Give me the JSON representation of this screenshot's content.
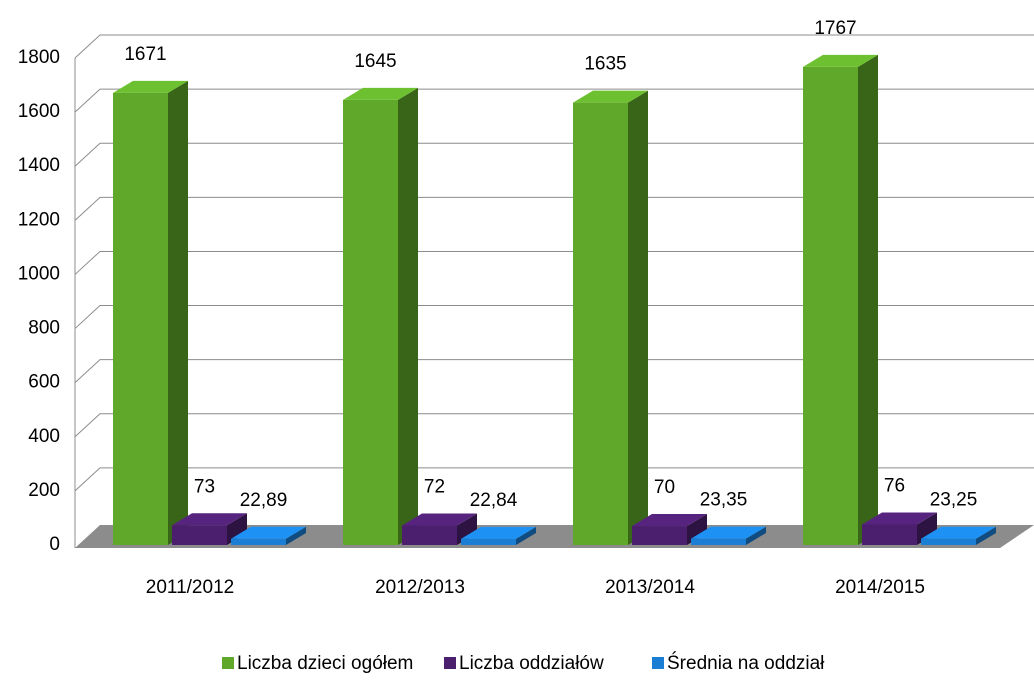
{
  "chart_data": {
    "type": "bar3d",
    "categories": [
      "2011/2012",
      "2012/2013",
      "2013/2014",
      "2014/2015"
    ],
    "series": [
      {
        "name": "Liczba dzieci ogółem",
        "color": "#5fa82a",
        "values": [
          1671,
          1645,
          1635,
          1767
        ]
      },
      {
        "name": "Liczba oddziałów",
        "color": "#4b1f6e",
        "values": [
          73,
          72,
          70,
          76
        ]
      },
      {
        "name": "Średnia na oddział",
        "color": "#1a7fd4",
        "values": [
          22.89,
          22.84,
          23.35,
          23.25
        ],
        "value_labels": [
          "22,89",
          "22,84",
          "23,35",
          "23,25"
        ]
      }
    ],
    "ylim": [
      0,
      1800
    ],
    "yticks": [
      0,
      200,
      400,
      600,
      800,
      1000,
      1200,
      1400,
      1600,
      1800
    ],
    "grid": true,
    "legend": "bottom"
  }
}
